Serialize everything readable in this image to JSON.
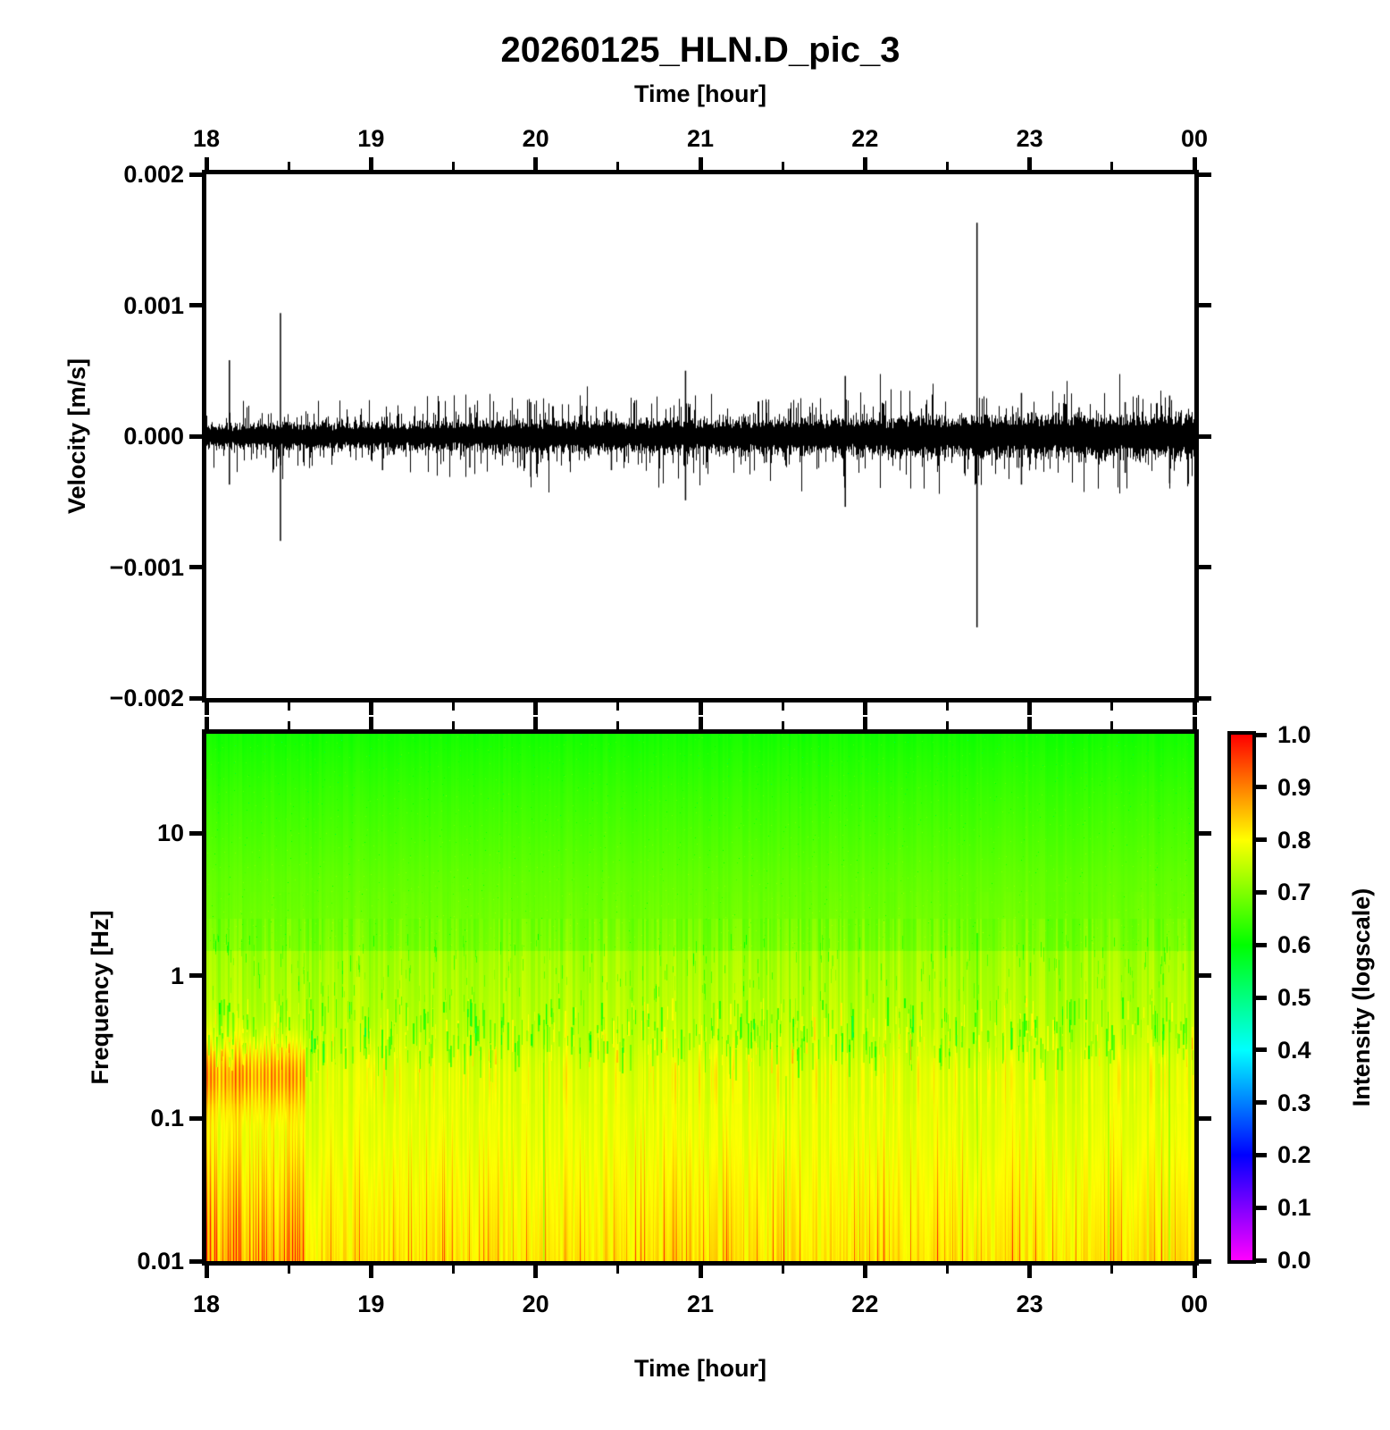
{
  "title": "20260125_HLN.D_pic_3",
  "time_axis": {
    "label": "Time [hour]",
    "tick_labels": [
      "18",
      "19",
      "20",
      "21",
      "22",
      "23",
      "00"
    ],
    "tick_hours": [
      18,
      19,
      20,
      21,
      22,
      23,
      24
    ],
    "minor_tick_hours": [
      18.5,
      19.5,
      20.5,
      21.5,
      22.5,
      23.5
    ],
    "range_hours": [
      18,
      24
    ]
  },
  "velocity_axis": {
    "label": "Velocity [m/s]",
    "tick_labels": [
      "0.002",
      "0.001",
      "0.000",
      "−0.001",
      "−0.002"
    ],
    "tick_values": [
      0.002,
      0.001,
      0,
      -0.001,
      -0.002
    ],
    "range": [
      -0.002,
      0.002
    ]
  },
  "frequency_axis": {
    "label": "Frequency [Hz]",
    "tick_labels": [
      "10",
      "1",
      "0.1",
      "0.01"
    ],
    "tick_values": [
      10,
      1,
      0.1,
      0.01
    ],
    "range": [
      0.01,
      50
    ],
    "scale": "log"
  },
  "colorbar": {
    "label": "Intensity (logscale)",
    "tick_labels": [
      "1.0",
      "0.9",
      "0.8",
      "0.7",
      "0.6",
      "0.5",
      "0.4",
      "0.3",
      "0.2",
      "0.1",
      "0.0"
    ],
    "tick_values": [
      1,
      0.9,
      0.8,
      0.7,
      0.6,
      0.5,
      0.4,
      0.3,
      0.2,
      0.1,
      0
    ],
    "gradient_stops_bottom_to_top": [
      "#ff00ff",
      "#8000ff",
      "#0000ff",
      "#0080ff",
      "#00ffff",
      "#00ff80",
      "#00ff00",
      "#80ff00",
      "#ffff00",
      "#ff8000",
      "#ff0000"
    ]
  },
  "chart_data": [
    {
      "type": "line",
      "name": "seismogram-trace",
      "title": "20260125_HLN.D_pic_3",
      "xlabel": "Time [hour]",
      "ylabel": "Velocity [m/s]",
      "xlim": [
        18,
        24
      ],
      "ylim": [
        -0.002,
        0.002
      ],
      "line_color": "#000000",
      "noise_band": {
        "amplitude_start": 6.5e-05,
        "amplitude_end": 0.000115
      },
      "spikes": [
        {
          "t": 18.14,
          "up": 0.00058,
          "down": -0.00037
        },
        {
          "t": 18.45,
          "up": 0.00094,
          "down": -0.0008
        },
        {
          "t": 19.07,
          "up": 0.0001,
          "down": -0.00026
        },
        {
          "t": 19.6,
          "up": 0.00022,
          "down": -0.00024
        },
        {
          "t": 19.97,
          "up": 0.00026,
          "down": -0.00031
        },
        {
          "t": 20.46,
          "up": 0.00019,
          "down": -0.00026
        },
        {
          "t": 20.91,
          "up": 0.0005,
          "down": -0.00049
        },
        {
          "t": 21.4,
          "up": 0.00026,
          "down": -0.0002
        },
        {
          "t": 21.88,
          "up": 0.00046,
          "down": -0.00054
        },
        {
          "t": 22.68,
          "up": 0.00163,
          "down": -0.00146
        },
        {
          "t": 22.95,
          "up": 0.00033,
          "down": -0.00037
        },
        {
          "t": 23.3,
          "up": 0.00022,
          "down": -0.0002
        },
        {
          "t": 23.58,
          "up": 0.00026,
          "down": -0.00028
        },
        {
          "t": 23.85,
          "up": 0.00031,
          "down": -0.00036
        }
      ]
    },
    {
      "type": "heatmap",
      "name": "spectrogram",
      "xlabel": "Time [hour]",
      "ylabel": "Frequency [Hz]",
      "xlim": [
        18,
        24
      ],
      "ylim": [
        0.01,
        50
      ],
      "yscale": "log",
      "intensity_label": "Intensity (logscale)",
      "intensity_range": [
        0,
        1
      ],
      "base_profile": [
        {
          "freq": 50,
          "intensity": 0.645
        },
        {
          "freq": 20,
          "intensity": 0.672
        },
        {
          "freq": 5,
          "intensity": 0.705
        },
        {
          "freq": 1,
          "intensity": 0.732
        },
        {
          "freq": 0.3,
          "intensity": 0.752
        },
        {
          "freq": 0.1,
          "intensity": 0.772
        },
        {
          "freq": 0.03,
          "intensity": 0.778
        },
        {
          "freq": 0.01,
          "intensity": 0.782
        }
      ],
      "features": {
        "speckle_above_freq": 1.5,
        "microseism_band": {
          "freq_center": 0.2,
          "strong_hours": [
            18.0,
            18.6
          ],
          "strong_intensity": 0.92,
          "weak_intensity": 0.8
        },
        "low_freq_stripes": {
          "below_freq": 0.1,
          "strong_hours": [
            18.0,
            18.6
          ],
          "max_intensity": 0.95
        },
        "green_streak_band": {
          "freq_range": [
            0.25,
            0.7
          ],
          "intensity_drop": 0.08
        },
        "green_lines": [
          {
            "hour": 20.05,
            "from_freq": 0.5,
            "intensity_drop": 0.1
          },
          {
            "hour": 21.52,
            "from_freq": 0.2,
            "intensity_drop": 0.07
          },
          {
            "hour": 22.68,
            "from_freq": 2.0,
            "intensity_drop": 0.1
          },
          {
            "hour": 23.48,
            "from_freq": 0.3,
            "intensity_drop": 0.07
          },
          {
            "hour": 23.85,
            "from_freq": 0.5,
            "intensity_drop": 0.08
          }
        ]
      }
    }
  ]
}
